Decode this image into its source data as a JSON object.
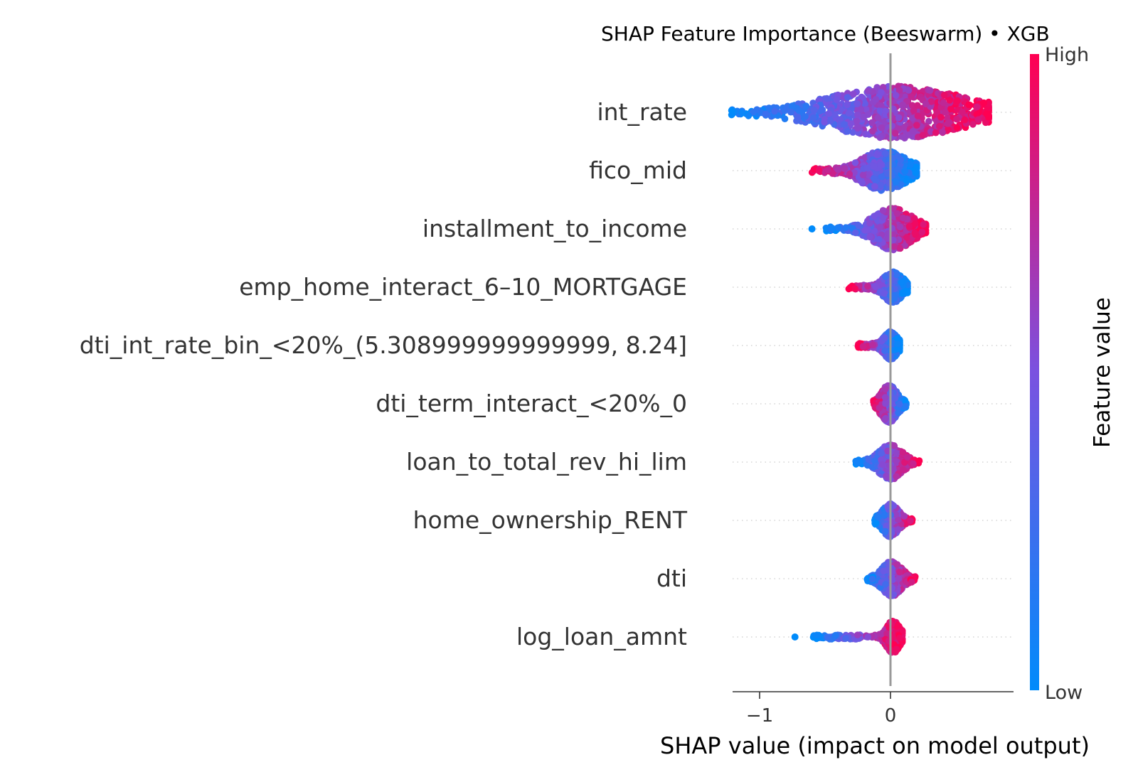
{
  "chart_data": {
    "type": "scatter",
    "subtype": "beeswarm",
    "title": "SHAP Feature Importance (Beeswarm) • XGB",
    "xlabel": "SHAP value (impact on model output)",
    "xlim": [
      -1.28,
      0.86
    ],
    "x_ticks": [
      {
        "value": -1,
        "label": "−1"
      },
      {
        "value": 0,
        "label": "0"
      }
    ],
    "grid": false,
    "colorbar": {
      "label": "Feature value",
      "high_label": "High",
      "low_label": "Low",
      "low_color": "#008bfb",
      "mid_color": "#7a52e0",
      "high_color": "#ff0052"
    },
    "features": [
      {
        "name": "int_rate",
        "min": -1.22,
        "max": 0.75,
        "center": 0.05,
        "spread": 0.42,
        "width": 1.0,
        "direction": 1,
        "outliers": []
      },
      {
        "name": "fico_mid",
        "min": -0.6,
        "max": 0.2,
        "center": -0.05,
        "spread": 0.14,
        "width": 0.75,
        "direction": -1,
        "outliers": []
      },
      {
        "name": "installment_to_income",
        "min": -0.5,
        "max": 0.27,
        "center": 0.02,
        "spread": 0.12,
        "width": 0.8,
        "direction": 1,
        "outliers": [
          -0.6
        ]
      },
      {
        "name": "emp_home_interact_6–10_MORTGAGE",
        "min": -0.32,
        "max": 0.13,
        "center": 0.02,
        "spread": 0.06,
        "width": 0.55,
        "direction": -1,
        "outliers": []
      },
      {
        "name": "dti_int_rate_bin_<20%_(5.308999999999999, 8.24]",
        "min": -0.25,
        "max": 0.07,
        "center": 0.0,
        "spread": 0.04,
        "width": 0.5,
        "direction": -1,
        "outliers": []
      },
      {
        "name": "dti_term_interact_<20%_0",
        "min": -0.13,
        "max": 0.12,
        "center": -0.01,
        "spread": 0.05,
        "width": 0.7,
        "direction": -1,
        "outliers": []
      },
      {
        "name": "loan_to_total_rev_hi_lim",
        "min": -0.27,
        "max": 0.22,
        "center": 0.0,
        "spread": 0.07,
        "width": 0.65,
        "direction": 1,
        "outliers": []
      },
      {
        "name": "home_ownership_RENT",
        "min": -0.12,
        "max": 0.17,
        "center": 0.0,
        "spread": 0.05,
        "width": 0.6,
        "direction": 1,
        "outliers": []
      },
      {
        "name": "dti",
        "min": -0.18,
        "max": 0.19,
        "center": 0.01,
        "spread": 0.06,
        "width": 0.65,
        "direction": 1,
        "outliers": []
      },
      {
        "name": "log_loan_amnt",
        "min": -0.6,
        "max": 0.09,
        "center": 0.02,
        "spread": 0.04,
        "width": 0.6,
        "direction": 1,
        "outliers": [
          -0.73
        ]
      }
    ]
  }
}
